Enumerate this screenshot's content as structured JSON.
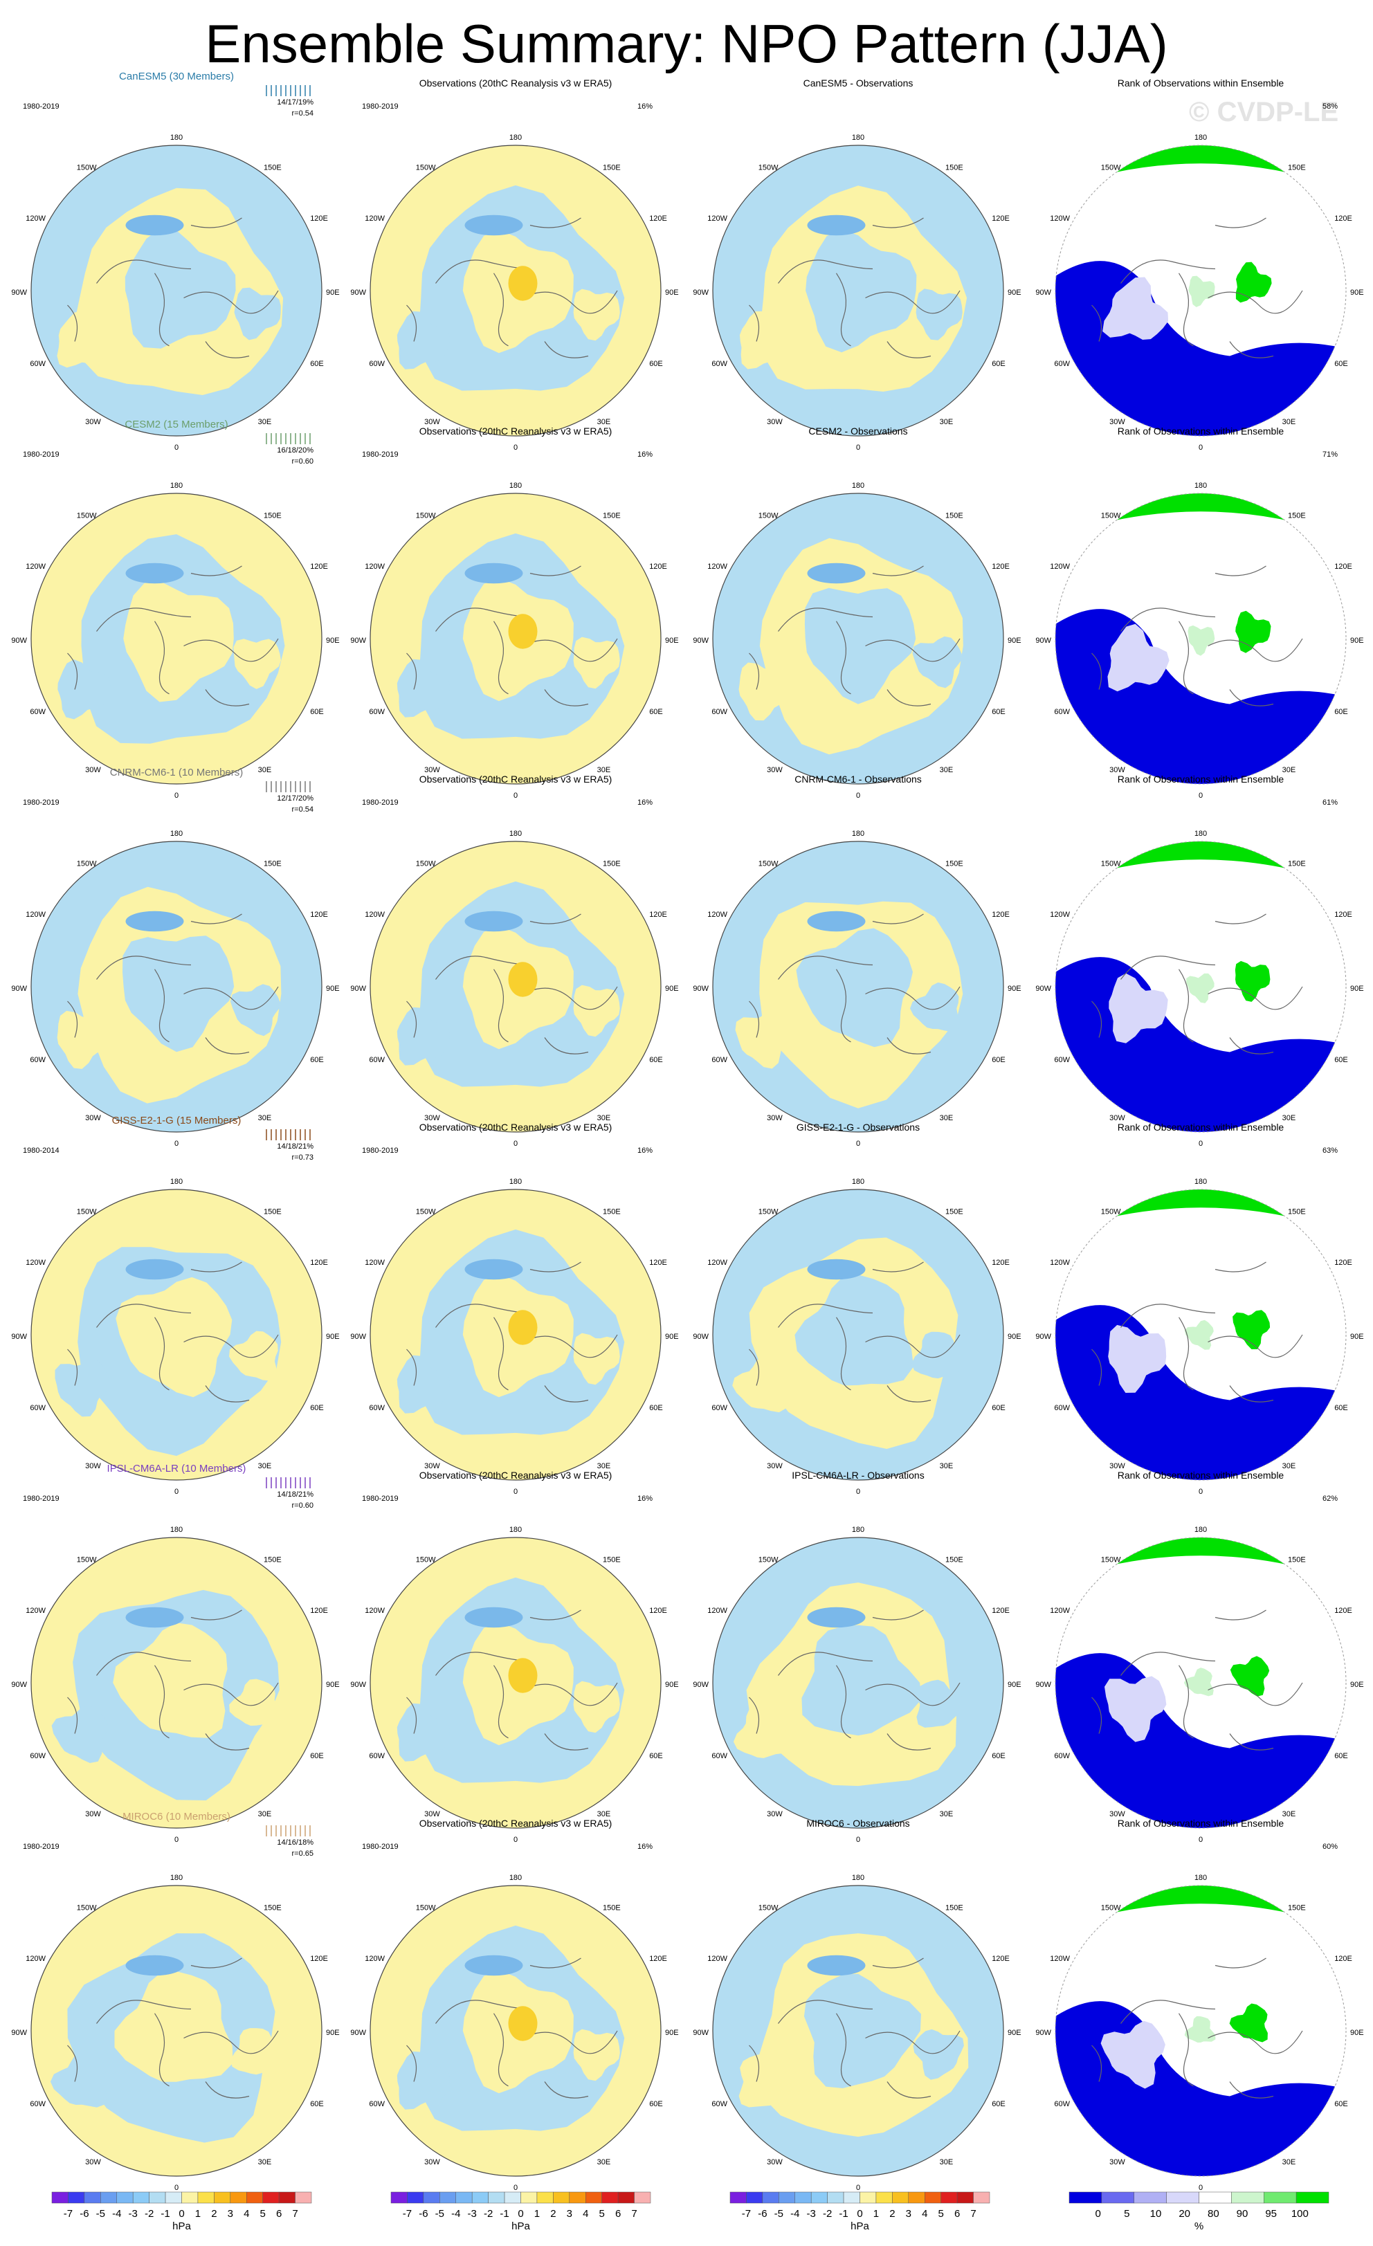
{
  "title": "Ensemble Summary: NPO Pattern (JJA)",
  "watermark": "© CVDP-LE",
  "colors": {
    "negative": "#b3ddf2",
    "positive": "#fbf3a6",
    "deep_negative": "#7ab8ea",
    "deep_positive": "#f8d02e",
    "rank_low": "#0000e0",
    "rank_mid_low": "#d8d8fa",
    "rank_mid": "#ffffff",
    "rank_high": "#00e000",
    "rank_mid_high": "#cdf5cd"
  },
  "obs_title": "Observations (20thC Reanalysis v3 w ERA5)",
  "rank_title": "Rank of Observations within Ensemble",
  "obs_pct": "16%",
  "obs_period": "1980-2019",
  "lon_labels": {
    "top": "180",
    "tl": "150W",
    "tr": "150E",
    "ul": "120W",
    "ur": "120E",
    "ml": "90W",
    "mr": "90E",
    "ll": "60W",
    "lr": "60E",
    "bl": "30W",
    "br": "30E",
    "bottom": "0"
  },
  "rows": [
    {
      "model": "CanESM5 (30 Members)",
      "color": "#2a7ca8",
      "period": "1980-2019",
      "pcts": "14/17/19%",
      "r": "r=0.54",
      "diff": "CanESM5 - Observations",
      "rank_pct": "58%"
    },
    {
      "model": "CESM2 (15 Members)",
      "color": "#6b9e6b",
      "period": "1980-2019",
      "pcts": "16/18/20%",
      "r": "r=0.60",
      "diff": "CESM2 - Observations",
      "rank_pct": "71%"
    },
    {
      "model": "CNRM-CM6-1 (10 Members)",
      "color": "#777777",
      "period": "1980-2019",
      "pcts": "12/17/20%",
      "r": "r=0.54",
      "diff": "CNRM-CM6-1 - Observations",
      "rank_pct": "61%"
    },
    {
      "model": "GISS-E2-1-G (15 Members)",
      "color": "#8a4a1a",
      "period": "1980-2014",
      "pcts": "14/18/21%",
      "r": "r=0.73",
      "diff": "GISS-E2-1-G - Observations",
      "rank_pct": "63%"
    },
    {
      "model": "IPSL-CM6A-LR (10 Members)",
      "color": "#7a3fc0",
      "period": "1980-2019",
      "pcts": "14/18/21%",
      "r": "r=0.60",
      "diff": "IPSL-CM6A-LR - Observations",
      "rank_pct": "62%"
    },
    {
      "model": "MIROC6 (10 Members)",
      "color": "#caa070",
      "period": "1980-2019",
      "pcts": "14/16/18%",
      "r": "r=0.65",
      "diff": "MIROC6 - Observations",
      "rank_pct": "60%"
    }
  ],
  "colorbar_hpa": {
    "ticks": [
      "-7",
      "-6",
      "-5",
      "-4",
      "-3",
      "-2",
      "-1",
      "0",
      "1",
      "2",
      "3",
      "4",
      "5",
      "6",
      "7"
    ],
    "colors": [
      "#7a1fe0",
      "#3b3bf0",
      "#5a7cf0",
      "#6a9ef0",
      "#7ab8f4",
      "#8ccbf6",
      "#b3ddf2",
      "#d6ecf6",
      "#fbf3a6",
      "#fbe04a",
      "#f8c020",
      "#f89810",
      "#f06010",
      "#e02020",
      "#c81818",
      "#f8b0b0"
    ],
    "unit": "hPa"
  },
  "colorbar_rank": {
    "ticks": [
      "0",
      "5",
      "10",
      "20",
      "80",
      "90",
      "95",
      "100"
    ],
    "colors": [
      "#0000e0",
      "#6a6af0",
      "#b0b0f4",
      "#d8d8fa",
      "#ffffff",
      "#cdf5cd",
      "#70ea70",
      "#00e000"
    ],
    "unit": "%"
  }
}
